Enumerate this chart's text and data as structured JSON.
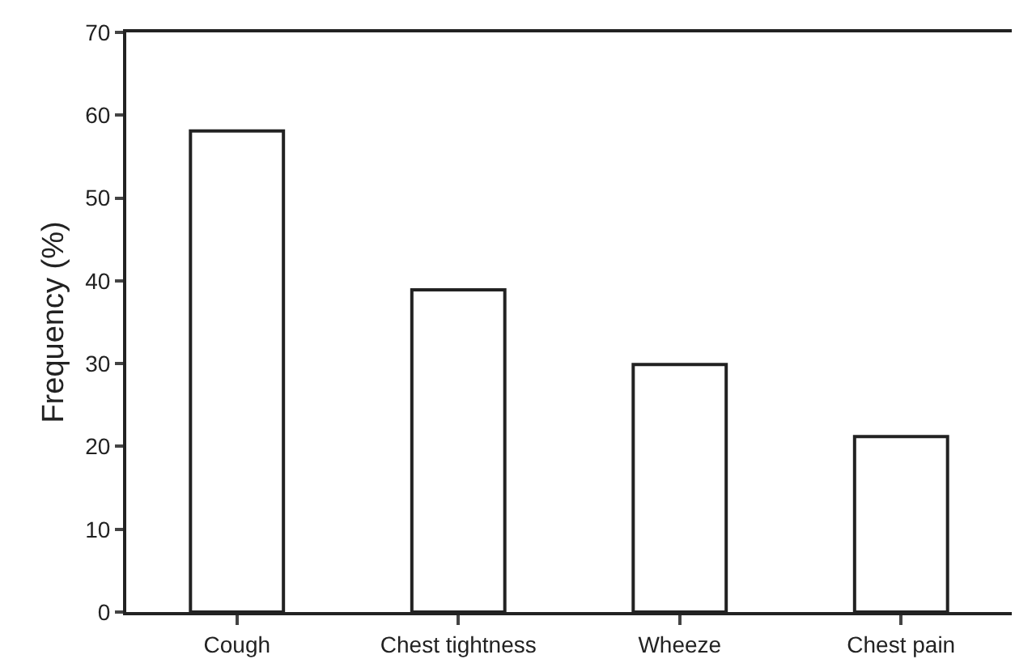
{
  "chart_data": {
    "type": "bar",
    "ylabel": "Frequency (%)",
    "categories": [
      "Cough",
      "Chest tightness",
      "Wheeze",
      "Chest pain"
    ],
    "values": [
      58.1,
      38.9,
      29.9,
      21.2
    ],
    "color": "#ffffff",
    "ylim": [
      0,
      70
    ],
    "yticks": [
      0,
      10,
      20,
      30,
      40,
      50,
      60,
      70
    ]
  }
}
